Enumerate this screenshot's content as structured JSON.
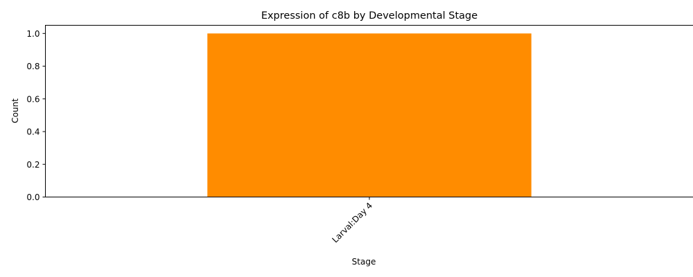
{
  "chart_data": {
    "type": "bar",
    "title": "Expression of c8b by Developmental Stage",
    "xlabel": "Stage",
    "ylabel": "Count",
    "categories": [
      "Larval:Day 4"
    ],
    "values": [
      1.0
    ],
    "ylim": [
      0,
      1.05
    ],
    "yticks": [
      0.0,
      0.2,
      0.4,
      0.6,
      0.8,
      1.0
    ],
    "ytick_labels": [
      "0.0",
      "0.2",
      "0.4",
      "0.6",
      "0.8",
      "1.0"
    ],
    "grid": false,
    "bar_color": "#ff8c00"
  }
}
